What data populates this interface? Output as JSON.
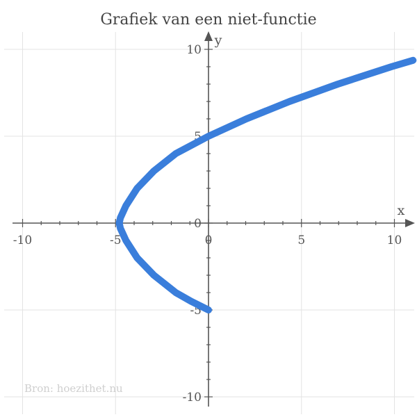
{
  "chart_data": {
    "type": "line",
    "title": "Grafiek van een niet-functie",
    "xlabel": "x",
    "ylabel": "y",
    "xlim": [
      -11,
      11
    ],
    "ylim": [
      -10.5,
      10.5
    ],
    "x_ticks": [
      -10,
      -5,
      0,
      5,
      10
    ],
    "y_ticks": [
      -10,
      -5,
      0,
      5,
      10
    ],
    "x_tick_labels": [
      "-10",
      "-5",
      "0",
      "5",
      "10"
    ],
    "y_tick_labels": [
      "-10",
      "-5",
      "0",
      "5",
      "10"
    ],
    "grid": true,
    "series": [
      {
        "color": "#3a7edb",
        "points": [
          [
            0,
            -5
          ],
          [
            -0.94,
            -4.5
          ],
          [
            -1.76,
            -4.0
          ],
          [
            -2.94,
            -3.0
          ],
          [
            -3.84,
            -2.0
          ],
          [
            -4.44,
            -1.0
          ],
          [
            -4.74,
            -0.3
          ],
          [
            -4.8,
            0
          ],
          [
            -4.74,
            0.3
          ],
          [
            -4.44,
            1.0
          ],
          [
            -3.84,
            2.0
          ],
          [
            -2.94,
            3.0
          ],
          [
            -1.76,
            4.0
          ],
          [
            0,
            5.0
          ],
          [
            2.04,
            6.0
          ],
          [
            4.36,
            7.0
          ],
          [
            6.96,
            8.0
          ],
          [
            9.84,
            9.0
          ],
          [
            11,
            9.37
          ]
        ]
      }
    ]
  },
  "source_text": "Bron: hoezithet.nu"
}
